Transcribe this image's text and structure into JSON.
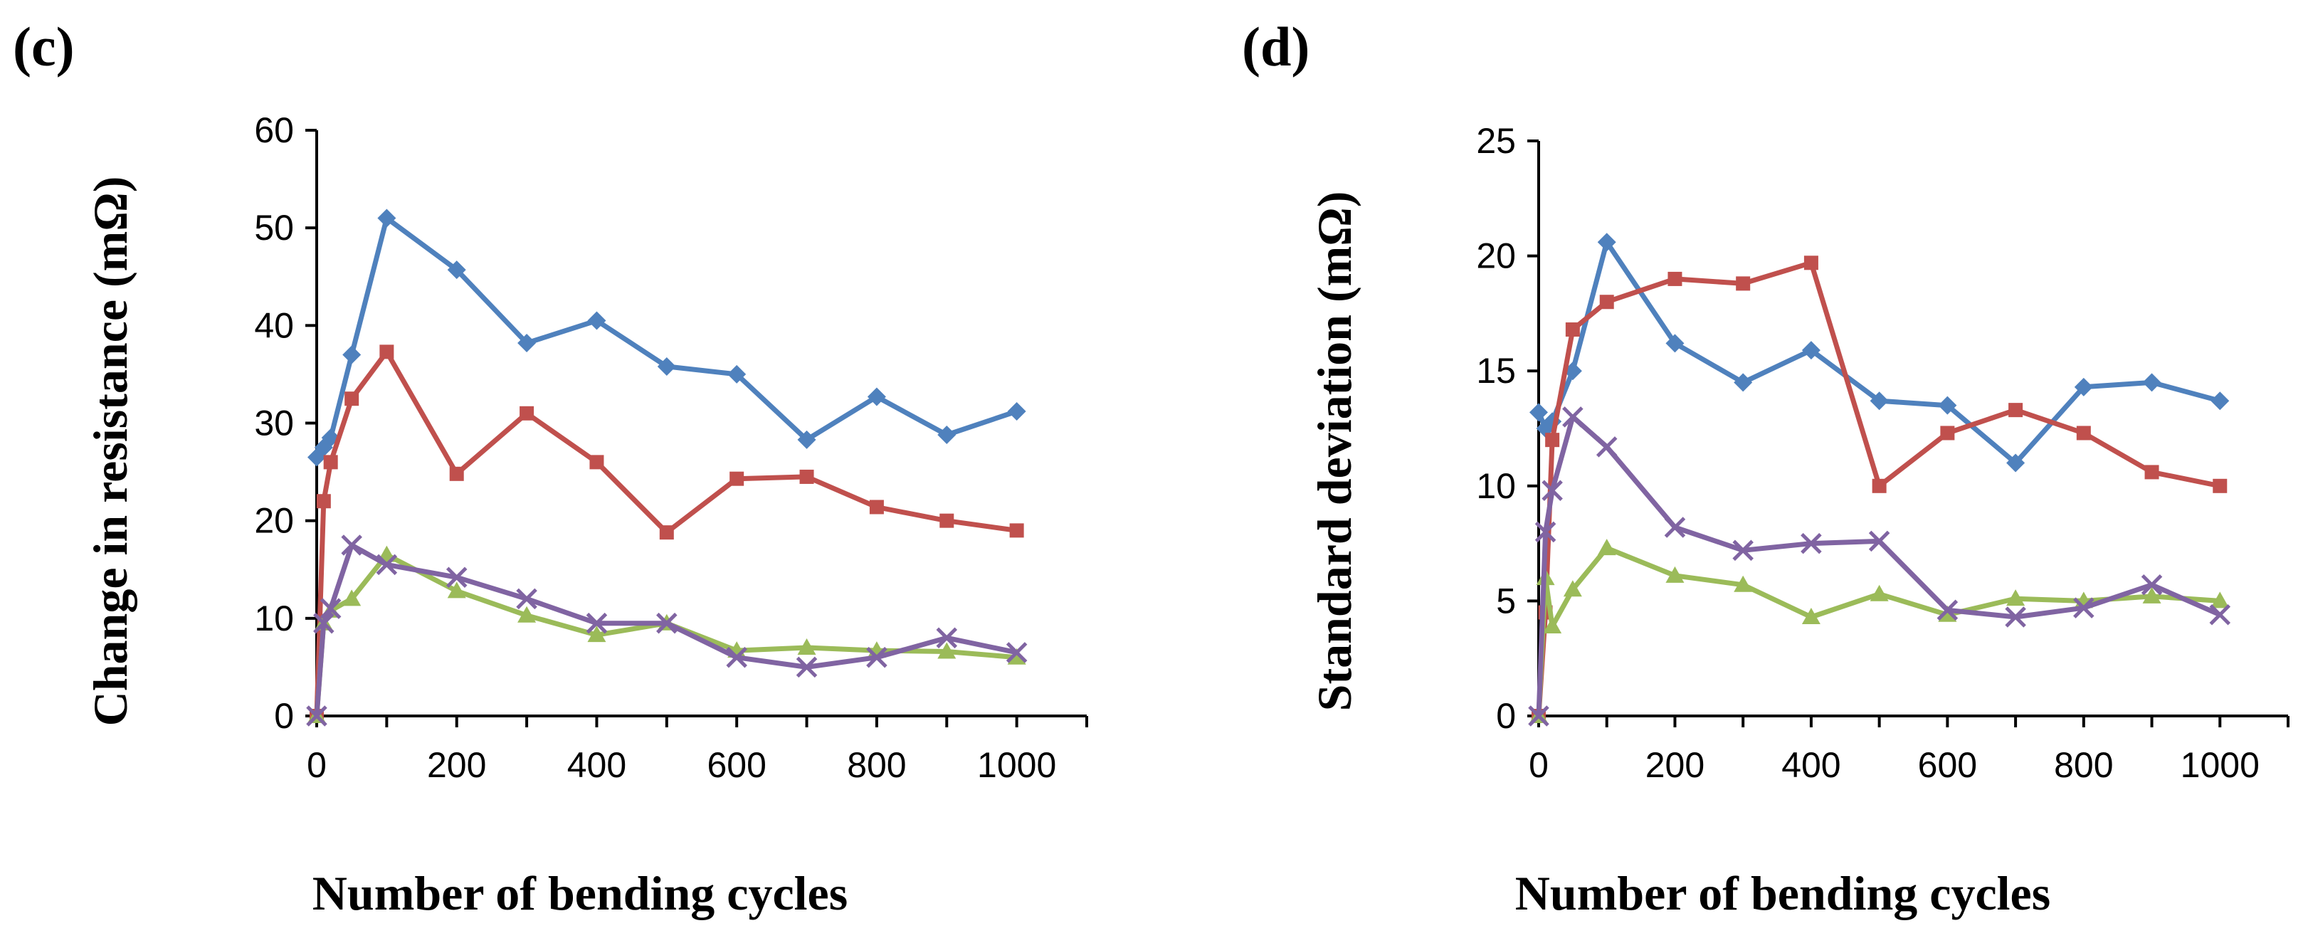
{
  "colors": {
    "blue": "#4F81BD",
    "red": "#C0504D",
    "green": "#9BBB59",
    "purple": "#8064A2"
  },
  "chart_data": [
    {
      "type": "line",
      "panel_label": "(c)",
      "title": "",
      "xlabel": "Number of bending cycles",
      "ylabel": "Change in resistance (mΩ)",
      "xlim": [
        0,
        1100
      ],
      "ylim": [
        0,
        60
      ],
      "xticks": [
        0,
        200,
        400,
        600,
        800,
        1000
      ],
      "yticks": [
        0,
        10,
        20,
        30,
        40,
        50,
        60
      ],
      "x": [
        0,
        10,
        20,
        50,
        100,
        200,
        300,
        400,
        500,
        600,
        700,
        800,
        900,
        1000
      ],
      "series": [
        {
          "name": "blue",
          "marker": "diamond",
          "color": "#4F81BD",
          "values": [
            26.5,
            27.5,
            28.5,
            37,
            51,
            45.7,
            38.2,
            40.5,
            35.8,
            35,
            28.3,
            32.7,
            28.8,
            31.2
          ]
        },
        {
          "name": "red",
          "marker": "square",
          "color": "#C0504D",
          "values": [
            0,
            22,
            26,
            32.5,
            37.3,
            24.8,
            31,
            26,
            18.8,
            24.3,
            24.5,
            21.4,
            20,
            19
          ]
        },
        {
          "name": "green",
          "marker": "triangle",
          "color": "#9BBB59",
          "values": [
            0,
            9.5,
            10.8,
            12,
            16.5,
            12.8,
            10.3,
            8.3,
            9.5,
            6.7,
            7,
            6.7,
            6.6,
            6
          ]
        },
        {
          "name": "purple",
          "marker": "x",
          "color": "#8064A2",
          "values": [
            0,
            9.5,
            11,
            17.5,
            15.5,
            14.2,
            12,
            9.5,
            9.5,
            6,
            5,
            6,
            8,
            6.5
          ]
        }
      ]
    },
    {
      "type": "line",
      "panel_label": "(d)",
      "title": "",
      "xlabel": "Number of bending cycles",
      "ylabel": "Standard deviation (mΩ)",
      "xlim": [
        0,
        1100
      ],
      "ylim": [
        0,
        25
      ],
      "xticks": [
        0,
        200,
        400,
        600,
        800,
        1000
      ],
      "yticks": [
        0,
        5,
        10,
        15,
        20,
        25
      ],
      "x": [
        0,
        10,
        20,
        50,
        100,
        200,
        300,
        400,
        500,
        600,
        700,
        800,
        900,
        1000
      ],
      "series": [
        {
          "name": "blue",
          "marker": "diamond",
          "color": "#4F81BD",
          "values": [
            13.2,
            12.5,
            12.8,
            15,
            20.6,
            16.2,
            14.5,
            15.9,
            13.7,
            13.5,
            11,
            14.3,
            14.5,
            13.7
          ]
        },
        {
          "name": "red",
          "marker": "square",
          "color": "#C0504D",
          "values": [
            0,
            4.5,
            12,
            16.8,
            18,
            19,
            18.8,
            19.7,
            10,
            12.3,
            13.3,
            12.3,
            10.6,
            10
          ]
        },
        {
          "name": "green",
          "marker": "triangle",
          "color": "#9BBB59",
          "values": [
            0,
            6,
            3.9,
            5.5,
            7.3,
            6.1,
            5.7,
            4.3,
            5.3,
            4.4,
            5.1,
            5,
            5.2,
            5
          ]
        },
        {
          "name": "purple",
          "marker": "x",
          "color": "#8064A2",
          "values": [
            0,
            8,
            9.8,
            13,
            11.7,
            8.2,
            7.2,
            7.5,
            7.6,
            4.6,
            4.3,
            4.7,
            5.7,
            4.4
          ]
        }
      ]
    }
  ]
}
